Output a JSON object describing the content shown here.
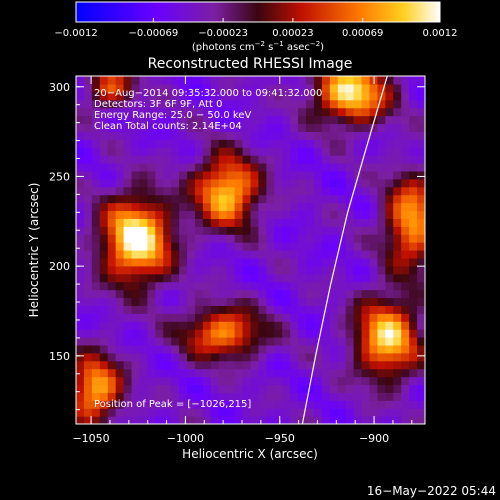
{
  "chart_data": {
    "type": "heatmap",
    "title": "Reconstructed RHESSI Image",
    "xlabel": "Heliocentric X (arcsec)",
    "ylabel": "Heliocentric Y (arcsec)",
    "xlim": [
      -1058,
      -873
    ],
    "ylim": [
      112,
      306
    ],
    "x_ticks": [
      -1050,
      -1000,
      -950,
      -900
    ],
    "x_tick_labels": [
      "−1050",
      "−1000",
      "−950",
      "−900"
    ],
    "y_ticks": [
      150,
      200,
      250,
      300
    ],
    "y_tick_labels": [
      "150",
      "200",
      "250",
      "300"
    ],
    "colorbar": {
      "range": [
        -0.0012,
        0.0012
      ],
      "ticks": [
        -0.0012,
        -0.00069,
        -0.00023,
        0.00023,
        0.00069,
        0.0012
      ],
      "tick_labels": [
        "−0.0012",
        "−0.00069",
        "−0.00023",
        "0.00023",
        "0.00069",
        "0.0012"
      ],
      "unit_label": "(photons cm",
      "unit_exp1": "−2",
      "unit_mid1": " s",
      "unit_exp2": "−1",
      "unit_mid2": " asec",
      "unit_exp3": "−2",
      "unit_end": ")"
    },
    "annotations": [
      "20−Aug−2014 09:35:32.000 to 09:41:32.000",
      "Detectors: 3F 6F 9F, Att 0",
      "Energy Range: 25.0 − 50.0 keV",
      "Clean    Total counts: 2.14E+04"
    ],
    "peak_label": "Position of Peak = [−1026,215]",
    "peak": {
      "x": -1026,
      "y": 215
    },
    "sources": [
      {
        "x": -1026,
        "y": 215,
        "sx": 13,
        "sy": 17,
        "amp": 1.0
      },
      {
        "x": -978,
        "y": 242,
        "sx": 12,
        "sy": 14,
        "amp": 0.85
      },
      {
        "x": -980,
        "y": 163,
        "sx": 15,
        "sy": 10,
        "amp": 0.7
      },
      {
        "x": -893,
        "y": 160,
        "sx": 12,
        "sy": 16,
        "amp": 0.85
      },
      {
        "x": -912,
        "y": 297,
        "sx": 14,
        "sy": 12,
        "amp": 0.9
      },
      {
        "x": -1048,
        "y": 132,
        "sx": 10,
        "sy": 13,
        "amp": 0.8
      },
      {
        "x": -880,
        "y": 225,
        "sx": 10,
        "sy": 18,
        "amp": 0.75
      },
      {
        "x": -1040,
        "y": 300,
        "sx": 9,
        "sy": 8,
        "amp": 0.55
      }
    ],
    "limb": [
      {
        "x": -938,
        "y": 112
      },
      {
        "x": -931,
        "y": 150
      },
      {
        "x": -923,
        "y": 190
      },
      {
        "x": -914,
        "y": 230
      },
      {
        "x": -903,
        "y": 270
      },
      {
        "x": -893,
        "y": 306
      }
    ]
  },
  "timestamp": "16−May−2022 05:44"
}
